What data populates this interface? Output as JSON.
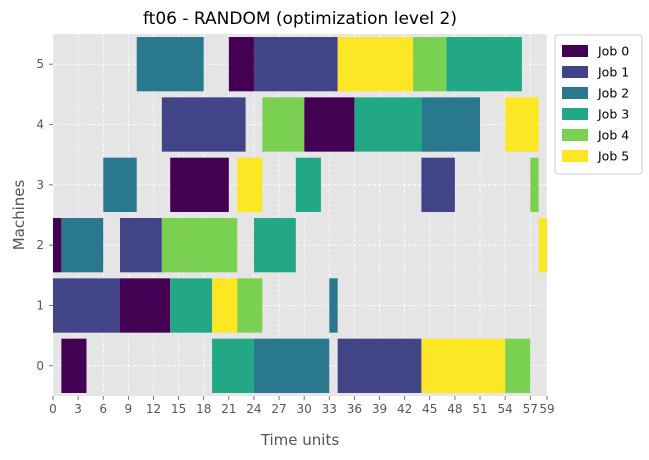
{
  "chart_data": {
    "type": "gantt",
    "title": "ft06 - RANDOM (optimization level 2)",
    "xlabel": "Time units",
    "ylabel": "Machines",
    "xlim": [
      0,
      59
    ],
    "x_ticks": [
      0,
      3,
      6,
      9,
      12,
      15,
      18,
      21,
      24,
      27,
      30,
      33,
      36,
      39,
      42,
      45,
      48,
      51,
      54,
      57,
      59
    ],
    "y_categories": [
      0,
      1,
      2,
      3,
      4,
      5
    ],
    "grid": true,
    "legend": {
      "placement": "upper-right-outside"
    },
    "series": [
      {
        "name": "Job 0",
        "color": "#440154",
        "tasks": [
          {
            "machine": 0,
            "start": 1,
            "end": 4
          },
          {
            "machine": 1,
            "start": 8,
            "end": 14
          },
          {
            "machine": 2,
            "start": 0,
            "end": 1
          },
          {
            "machine": 3,
            "start": 14,
            "end": 21
          },
          {
            "machine": 4,
            "start": 30,
            "end": 36
          },
          {
            "machine": 5,
            "start": 21,
            "end": 24
          }
        ]
      },
      {
        "name": "Job 1",
        "color": "#414487",
        "tasks": [
          {
            "machine": 0,
            "start": 34,
            "end": 44
          },
          {
            "machine": 1,
            "start": 0,
            "end": 8
          },
          {
            "machine": 2,
            "start": 8,
            "end": 13
          },
          {
            "machine": 3,
            "start": 44,
            "end": 48
          },
          {
            "machine": 4,
            "start": 13,
            "end": 23
          },
          {
            "machine": 5,
            "start": 24,
            "end": 34
          }
        ]
      },
      {
        "name": "Job 2",
        "color": "#2a788e",
        "tasks": [
          {
            "machine": 0,
            "start": 24,
            "end": 33
          },
          {
            "machine": 1,
            "start": 33,
            "end": 34
          },
          {
            "machine": 2,
            "start": 1,
            "end": 6
          },
          {
            "machine": 3,
            "start": 6,
            "end": 10
          },
          {
            "machine": 4,
            "start": 44,
            "end": 51
          },
          {
            "machine": 5,
            "start": 10,
            "end": 18
          }
        ]
      },
      {
        "name": "Job 3",
        "color": "#22a884",
        "tasks": [
          {
            "machine": 0,
            "start": 19,
            "end": 24
          },
          {
            "machine": 1,
            "start": 14,
            "end": 19
          },
          {
            "machine": 2,
            "start": 24,
            "end": 29
          },
          {
            "machine": 3,
            "start": 29,
            "end": 32
          },
          {
            "machine": 4,
            "start": 36,
            "end": 44
          },
          {
            "machine": 5,
            "start": 47,
            "end": 56
          }
        ]
      },
      {
        "name": "Job 4",
        "color": "#7ad151",
        "tasks": [
          {
            "machine": 0,
            "start": 54,
            "end": 57
          },
          {
            "machine": 1,
            "start": 22,
            "end": 25
          },
          {
            "machine": 2,
            "start": 13,
            "end": 22
          },
          {
            "machine": 3,
            "start": 57,
            "end": 58
          },
          {
            "machine": 4,
            "start": 25,
            "end": 30
          },
          {
            "machine": 5,
            "start": 43,
            "end": 47
          }
        ]
      },
      {
        "name": "Job 5",
        "color": "#fde725",
        "tasks": [
          {
            "machine": 0,
            "start": 44,
            "end": 54
          },
          {
            "machine": 1,
            "start": 19,
            "end": 22
          },
          {
            "machine": 2,
            "start": 58,
            "end": 59
          },
          {
            "machine": 3,
            "start": 22,
            "end": 25
          },
          {
            "machine": 4,
            "start": 54,
            "end": 58
          },
          {
            "machine": 5,
            "start": 34,
            "end": 43
          }
        ]
      }
    ]
  }
}
